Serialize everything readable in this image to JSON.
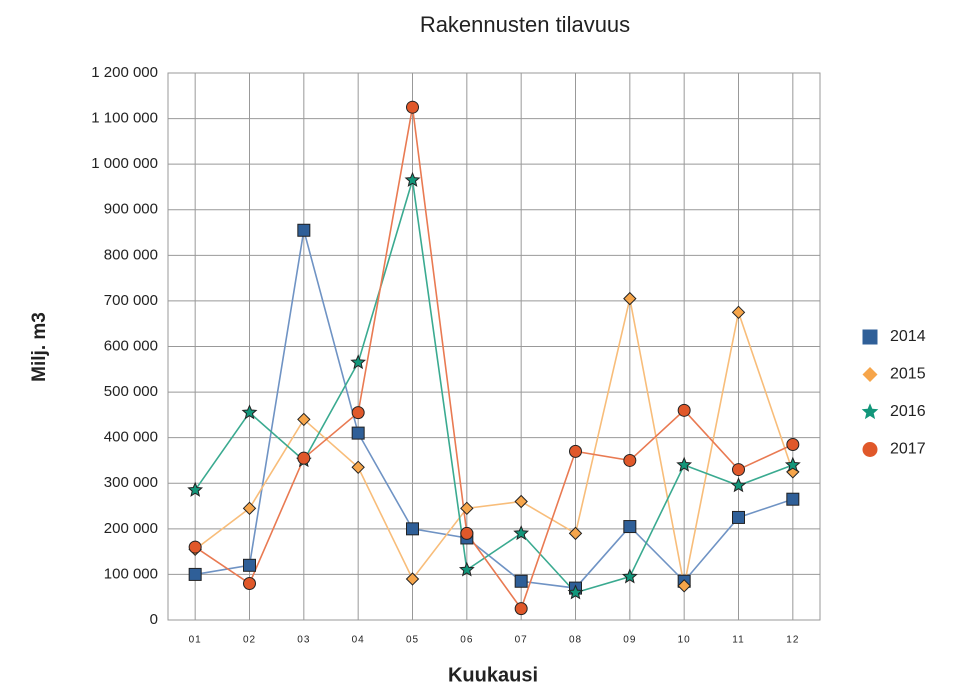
{
  "chart_data": {
    "type": "line",
    "title": "Rakennusten tilavuus",
    "x_label": "Kuukausi",
    "y_label": "Milj. m3",
    "categories": [
      "01",
      "02",
      "03",
      "04",
      "05",
      "06",
      "07",
      "08",
      "09",
      "10",
      "11",
      "12"
    ],
    "series": [
      {
        "name": "2014",
        "color": "#2f5f98",
        "line_color": "#6f93c4",
        "marker": "square",
        "values": [
          100000,
          120000,
          855000,
          410000,
          200000,
          180000,
          85000,
          70000,
          205000,
          85000,
          225000,
          265000
        ]
      },
      {
        "name": "2015",
        "color": "#f6a54a",
        "line_color": "#f8bd7a",
        "marker": "diamond",
        "values": [
          155000,
          245000,
          440000,
          335000,
          90000,
          245000,
          260000,
          190000,
          705000,
          75000,
          675000,
          325000
        ]
      },
      {
        "name": "2016",
        "color": "#12967a",
        "line_color": "#3aaa90",
        "marker": "star",
        "values": [
          285000,
          455000,
          350000,
          565000,
          965000,
          110000,
          190000,
          60000,
          95000,
          340000,
          295000,
          340000
        ]
      },
      {
        "name": "2017",
        "color": "#e0582a",
        "line_color": "#e97a52",
        "marker": "circle",
        "values": [
          160000,
          80000,
          355000,
          455000,
          1125000,
          190000,
          25000,
          370000,
          350000,
          460000,
          330000,
          385000
        ]
      }
    ],
    "ylim": [
      0,
      1200000
    ],
    "yticks": [
      0,
      {
        "value": 100000,
        "label": "100 000"
      },
      {
        "value": 200000,
        "label": "200 000"
      },
      {
        "value": 300000,
        "label": "300 000"
      },
      {
        "value": 400000,
        "label": "400 000"
      },
      {
        "value": 500000,
        "label": "500 000"
      },
      {
        "value": 600000,
        "label": "600 000"
      },
      {
        "value": 700000,
        "label": "700 000"
      },
      {
        "value": 800000,
        "label": "800 000"
      },
      {
        "value": 900000,
        "label": "900 000"
      },
      {
        "value": 1000000,
        "label": "1 000 000"
      },
      {
        "value": 1100000,
        "label": "1 100 000"
      },
      {
        "value": 1200000,
        "label": "1 200 000"
      }
    ],
    "grid": true,
    "legend": "right"
  }
}
